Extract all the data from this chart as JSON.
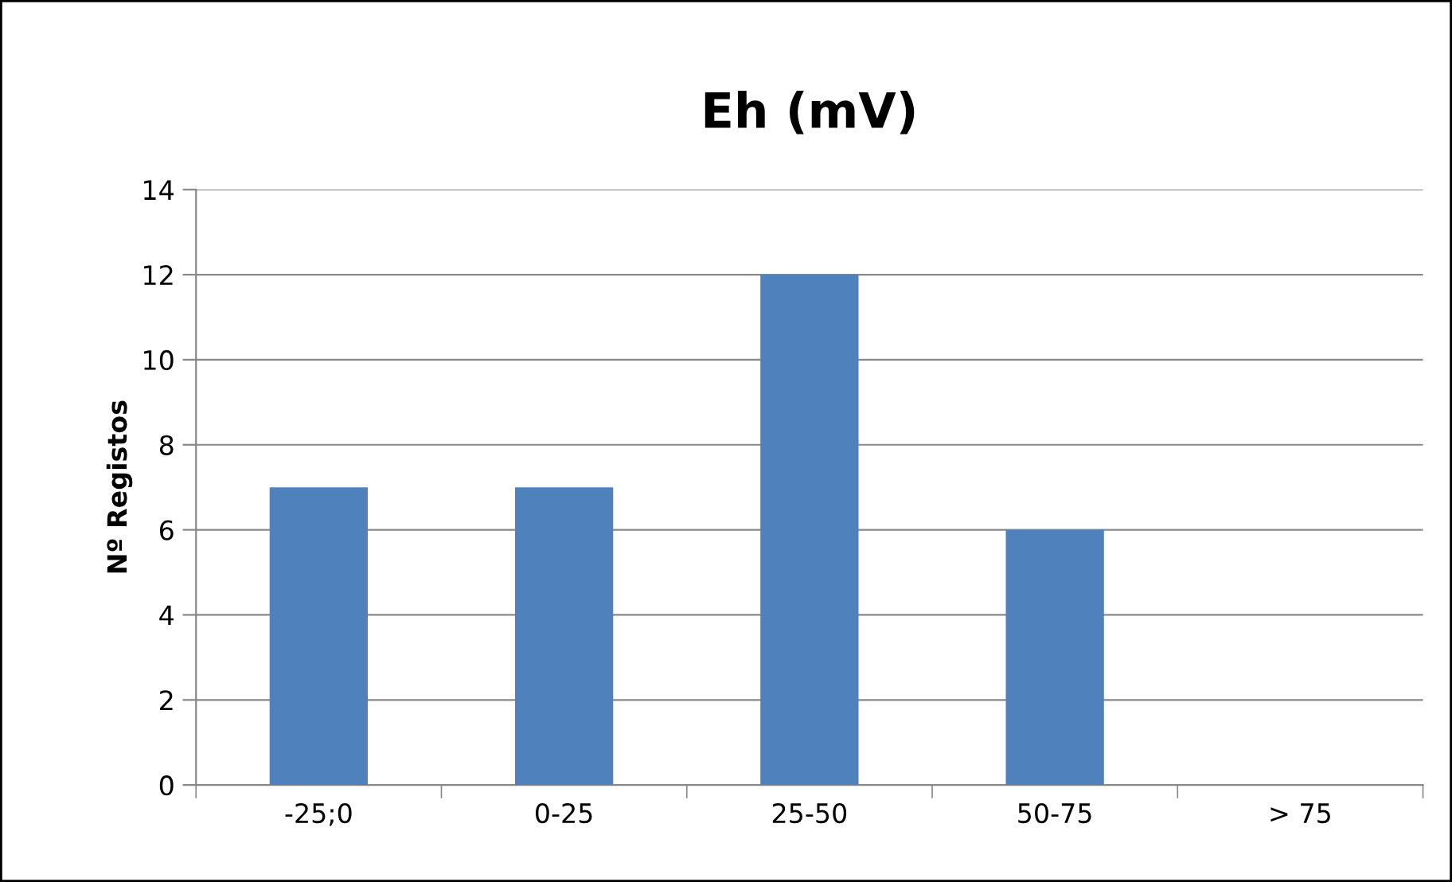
{
  "chart_data": {
    "type": "bar",
    "title": "Eh (mV)",
    "ylabel": "Nº Registos",
    "categories": [
      "-25;0",
      "0-25",
      "25-50",
      "50-75",
      "> 75"
    ],
    "values": [
      7,
      7,
      12,
      6,
      0
    ],
    "color": "#4f81bd",
    "ylim": [
      0,
      14
    ],
    "yticks": [
      0,
      2,
      4,
      6,
      8,
      10,
      12,
      14
    ],
    "grid": "y",
    "legend": false
  }
}
